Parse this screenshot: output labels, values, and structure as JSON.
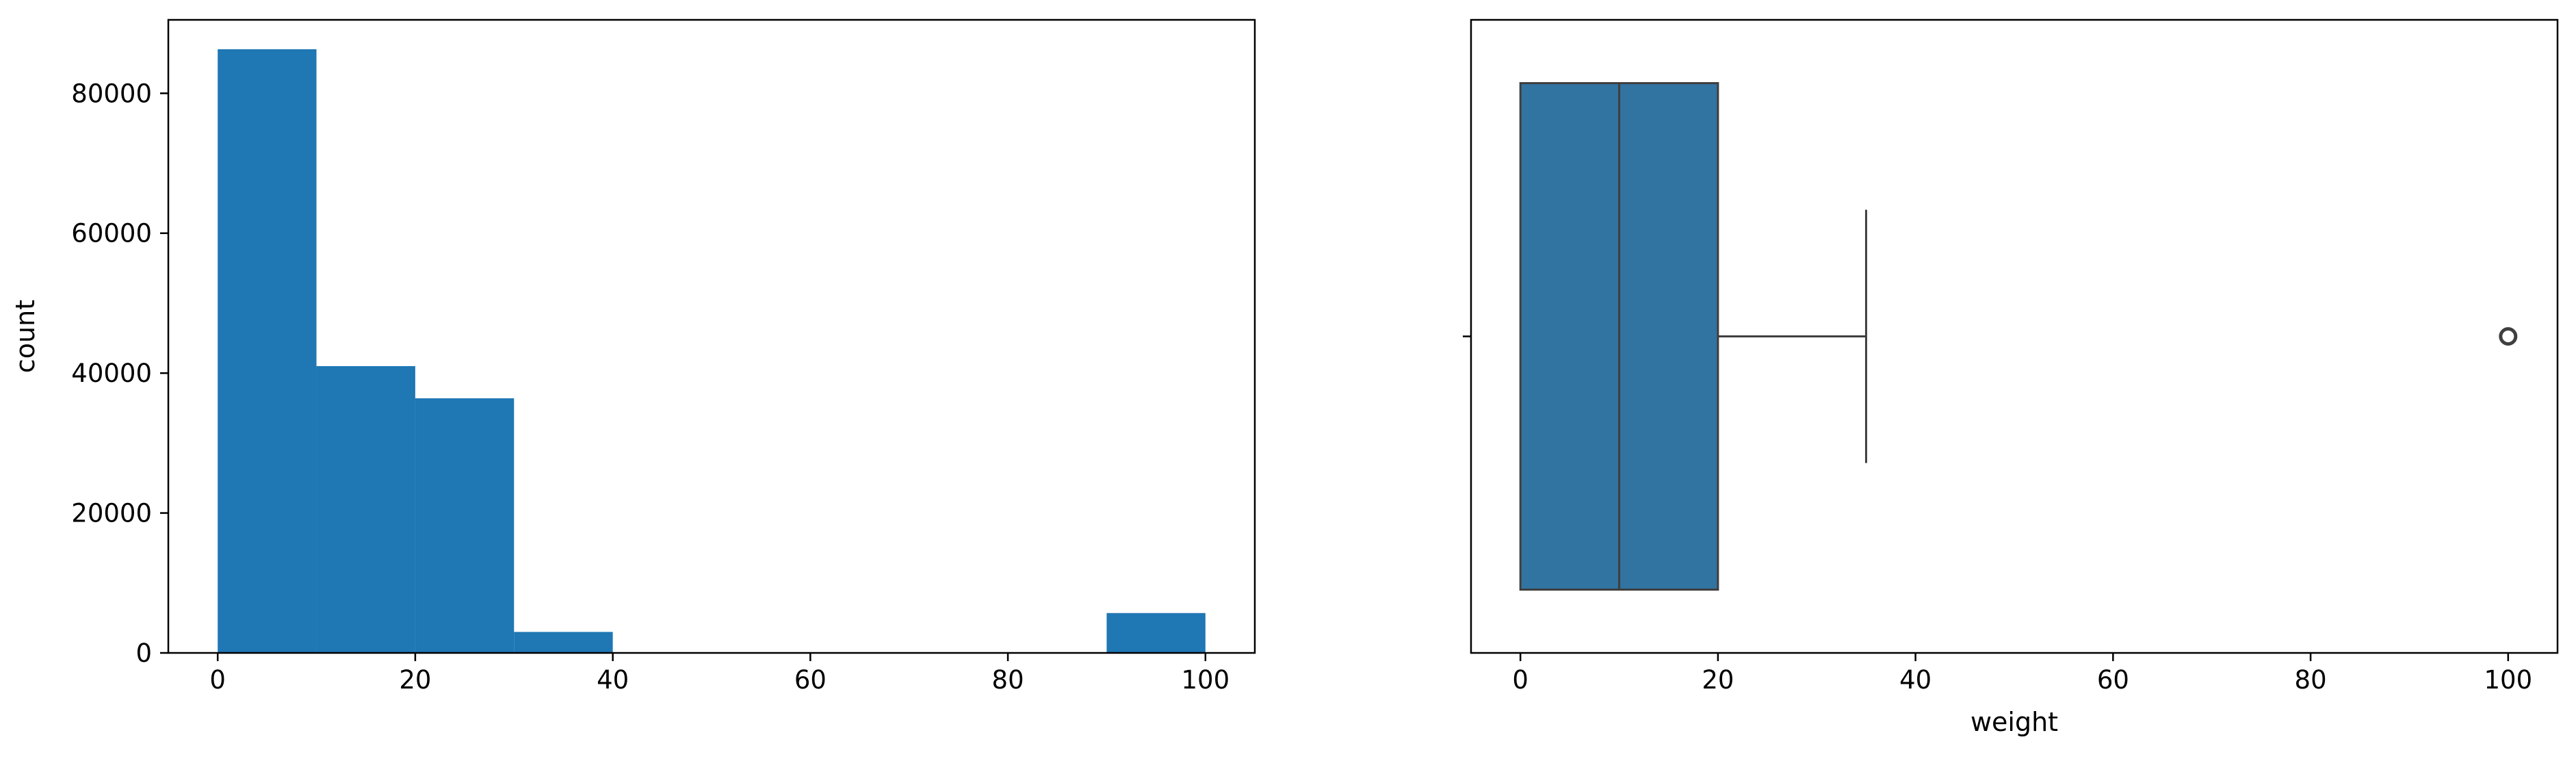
{
  "chart_data": [
    {
      "type": "histogram",
      "xlabel": "",
      "ylabel": "count",
      "xlim": [
        -5,
        105
      ],
      "ylim": [
        0,
        90500
      ],
      "bins": [
        {
          "x0": 0,
          "x1": 10,
          "count": 86300
        },
        {
          "x0": 10,
          "x1": 20,
          "count": 41000
        },
        {
          "x0": 20,
          "x1": 30,
          "count": 36400
        },
        {
          "x0": 30,
          "x1": 40,
          "count": 3000
        },
        {
          "x0": 40,
          "x1": 50,
          "count": 0
        },
        {
          "x0": 50,
          "x1": 60,
          "count": 0
        },
        {
          "x0": 60,
          "x1": 70,
          "count": 0
        },
        {
          "x0": 70,
          "x1": 80,
          "count": 0
        },
        {
          "x0": 80,
          "x1": 90,
          "count": 0
        },
        {
          "x0": 90,
          "x1": 100,
          "count": 5700
        }
      ],
      "xticks": [
        0,
        20,
        40,
        60,
        80,
        100
      ],
      "yticks": [
        0,
        20000,
        40000,
        60000,
        80000
      ],
      "color": "#1f77b4"
    },
    {
      "type": "box",
      "xlabel": "weight",
      "ylabel": "",
      "xlim": [
        -5,
        105
      ],
      "stats": {
        "whisker_low": 0,
        "q1": 0,
        "median": 10,
        "q3": 20,
        "whisker_high": 35
      },
      "outliers": [
        100
      ],
      "xticks": [
        0,
        20,
        40,
        60,
        80,
        100
      ],
      "color": "#3274a1"
    }
  ]
}
